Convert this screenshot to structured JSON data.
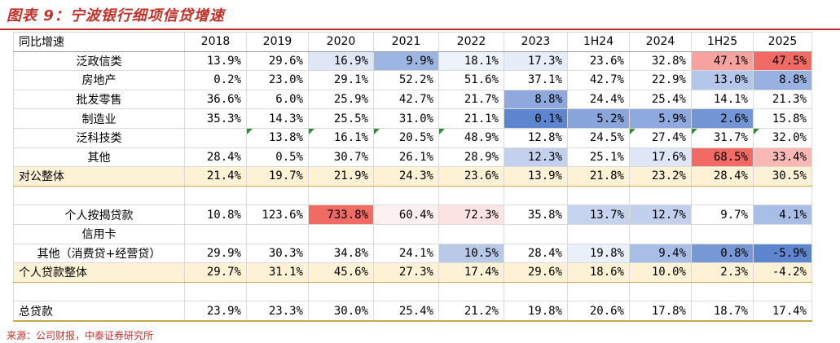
{
  "title": "图表 9：宁波银行细项信贷增速",
  "source": "来源：公司财报，中泰证券研究所",
  "header": [
    "同比增速",
    "2018",
    "2019",
    "2020",
    "2021",
    "2022",
    "2023",
    "1H24",
    "2024",
    "1H25",
    "2025"
  ],
  "rows": [
    {
      "label": "泛政信类",
      "cells": [
        {
          "v": "13.9%"
        },
        {
          "v": "29.6%"
        },
        {
          "v": "16.9%",
          "bg": "#dfe7f6"
        },
        {
          "v": "9.9%",
          "bg": "#9db5e3"
        },
        {
          "v": "18.1%",
          "bg": "#eef2fa"
        },
        {
          "v": "17.3%",
          "bg": "#e6ecf8"
        },
        {
          "v": "23.6%"
        },
        {
          "v": "32.8%"
        },
        {
          "v": "47.1%",
          "bg": "#f6a3a0"
        },
        {
          "v": "47.5%",
          "bg": "#f26a64"
        }
      ]
    },
    {
      "label": "房地产",
      "cells": [
        {
          "v": "0.2%"
        },
        {
          "v": "23.0%"
        },
        {
          "v": "29.1%"
        },
        {
          "v": "52.2%"
        },
        {
          "v": "51.6%"
        },
        {
          "v": "37.1%"
        },
        {
          "v": "42.7%"
        },
        {
          "v": "22.9%"
        },
        {
          "v": "13.0%",
          "bg": "#b4c6ea"
        },
        {
          "v": "8.8%",
          "bg": "#98b1e1"
        }
      ]
    },
    {
      "label": "批发零售",
      "cells": [
        {
          "v": "36.6%"
        },
        {
          "v": "6.0%"
        },
        {
          "v": "25.9%"
        },
        {
          "v": "42.7%"
        },
        {
          "v": "21.7%"
        },
        {
          "v": "8.8%",
          "bg": "#8fa9dd"
        },
        {
          "v": "24.4%"
        },
        {
          "v": "25.4%"
        },
        {
          "v": "14.1%"
        },
        {
          "v": "21.3%"
        }
      ]
    },
    {
      "label": "制造业",
      "cells": [
        {
          "v": "35.3%"
        },
        {
          "v": "14.3%"
        },
        {
          "v": "25.5%"
        },
        {
          "v": "31.0%"
        },
        {
          "v": "21.1%"
        },
        {
          "v": "0.1%",
          "bg": "#5d86ce"
        },
        {
          "v": "5.2%",
          "bg": "#89a5dc"
        },
        {
          "v": "5.9%",
          "bg": "#8ea9dd"
        },
        {
          "v": "2.6%",
          "bg": "#7495d4"
        },
        {
          "v": "15.8%"
        }
      ]
    },
    {
      "label": "泛科技类",
      "cells": [
        {
          "v": "",
          "tri": false
        },
        {
          "v": "13.8%",
          "tri": true
        },
        {
          "v": "16.1%",
          "tri": true
        },
        {
          "v": "20.5%",
          "tri": true
        },
        {
          "v": "48.9%",
          "tri": true
        },
        {
          "v": "12.8%"
        },
        {
          "v": "24.5%"
        },
        {
          "v": "27.4%",
          "tri": true
        },
        {
          "v": "31.7%",
          "tri": true
        },
        {
          "v": "32.0%",
          "tri": true
        }
      ]
    },
    {
      "label": "其他",
      "cells": [
        {
          "v": "28.4%"
        },
        {
          "v": "0.5%"
        },
        {
          "v": "30.7%"
        },
        {
          "v": "26.1%"
        },
        {
          "v": "28.9%"
        },
        {
          "v": "12.3%",
          "bg": "#c3d1ee"
        },
        {
          "v": "25.1%"
        },
        {
          "v": "17.6%",
          "bg": "#dfe7f6"
        },
        {
          "v": "68.5%",
          "bg": "#f26a64"
        },
        {
          "v": "33.4%",
          "bg": "#f8b9b6"
        }
      ]
    },
    {
      "label": "对公整体",
      "band": true,
      "cells": [
        {
          "v": "21.4%"
        },
        {
          "v": "19.7%"
        },
        {
          "v": "21.9%"
        },
        {
          "v": "24.3%"
        },
        {
          "v": "23.6%"
        },
        {
          "v": "13.9%"
        },
        {
          "v": "21.8%"
        },
        {
          "v": "23.2%"
        },
        {
          "v": "28.4%"
        },
        {
          "v": "30.5%"
        }
      ]
    },
    {
      "label": "",
      "empty": true,
      "cells": [
        {
          "v": ""
        },
        {
          "v": ""
        },
        {
          "v": ""
        },
        {
          "v": ""
        },
        {
          "v": ""
        },
        {
          "v": ""
        },
        {
          "v": ""
        },
        {
          "v": ""
        },
        {
          "v": ""
        },
        {
          "v": ""
        }
      ]
    },
    {
      "label": "个人按揭贷款",
      "cells": [
        {
          "v": "10.8%"
        },
        {
          "v": "123.6%"
        },
        {
          "v": "733.8%",
          "bg": "#f26a64"
        },
        {
          "v": "60.4%",
          "bg": "#fdf0f0"
        },
        {
          "v": "72.3%",
          "bg": "#fbe3e3"
        },
        {
          "v": "35.8%"
        },
        {
          "v": "13.7%",
          "bg": "#c6d3ef"
        },
        {
          "v": "12.7%",
          "bg": "#c2d0ee"
        },
        {
          "v": "9.7%"
        },
        {
          "v": "4.1%",
          "bg": "#a9bee7"
        }
      ]
    },
    {
      "label": "信用卡",
      "cells": [
        {
          "v": ""
        },
        {
          "v": ""
        },
        {
          "v": ""
        },
        {
          "v": ""
        },
        {
          "v": ""
        },
        {
          "v": ""
        },
        {
          "v": ""
        },
        {
          "v": ""
        },
        {
          "v": ""
        },
        {
          "v": ""
        }
      ]
    },
    {
      "label": "其他（消费贷+经营贷）",
      "cells": [
        {
          "v": "29.9%"
        },
        {
          "v": "30.3%"
        },
        {
          "v": "34.8%"
        },
        {
          "v": "24.1%"
        },
        {
          "v": "10.5%",
          "bg": "#b9cae9"
        },
        {
          "v": "28.4%"
        },
        {
          "v": "19.8%",
          "bg": "#eaf0f9"
        },
        {
          "v": "9.4%",
          "bg": "#a9bee7"
        },
        {
          "v": "0.8%",
          "bg": "#7798d5"
        },
        {
          "v": "-5.9%",
          "bg": "#5d86ce"
        }
      ]
    },
    {
      "label": "个人贷款整体",
      "band": true,
      "cells": [
        {
          "v": "29.7%"
        },
        {
          "v": "31.1%"
        },
        {
          "v": "45.6%"
        },
        {
          "v": "27.3%"
        },
        {
          "v": "17.4%"
        },
        {
          "v": "29.6%"
        },
        {
          "v": "18.6%"
        },
        {
          "v": "10.0%"
        },
        {
          "v": "2.3%"
        },
        {
          "v": "-4.2%"
        }
      ]
    },
    {
      "label": "",
      "empty": true,
      "cells": [
        {
          "v": ""
        },
        {
          "v": ""
        },
        {
          "v": ""
        },
        {
          "v": ""
        },
        {
          "v": ""
        },
        {
          "v": ""
        },
        {
          "v": ""
        },
        {
          "v": ""
        },
        {
          "v": ""
        },
        {
          "v": ""
        }
      ]
    },
    {
      "label": "总贷款",
      "total": true,
      "cells": [
        {
          "v": "23.9%"
        },
        {
          "v": "23.3%"
        },
        {
          "v": "30.0%"
        },
        {
          "v": "25.4%"
        },
        {
          "v": "21.2%"
        },
        {
          "v": "19.8%"
        },
        {
          "v": "20.6%"
        },
        {
          "v": "17.8%"
        },
        {
          "v": "18.7%"
        },
        {
          "v": "17.4%"
        }
      ]
    }
  ]
}
